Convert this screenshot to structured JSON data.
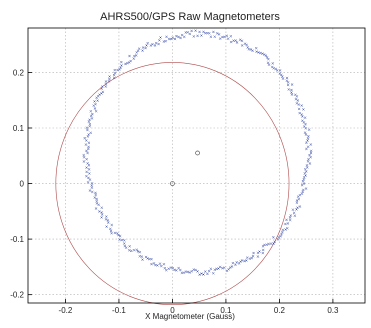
{
  "chart_data": {
    "type": "scatter",
    "title": "AHRS500/GPS Raw Magnetometers",
    "xlabel": "X Magnetometer (Gauss)",
    "ylabel": "",
    "xlim": [
      -0.27,
      0.36
    ],
    "ylim": [
      -0.215,
      0.28
    ],
    "xticks": [
      -0.2,
      -0.1,
      0,
      0.1,
      0.2,
      0.3
    ],
    "xtick_labels": [
      "-0.2",
      "-0.1",
      "0",
      "0.1",
      "0.2",
      "0.3"
    ],
    "yticks": [
      -0.2,
      -0.1,
      0,
      0.1,
      0.2
    ],
    "ytick_labels": [
      "-0.2",
      "-0.1",
      "0",
      "0.1",
      "0.2"
    ],
    "grid": true,
    "colors": {
      "data": "#2a3fa0",
      "reference_circle": "#b04a4a",
      "center": "#555555",
      "axis": "#000000",
      "grid": "#b0b0b0"
    },
    "series": [
      {
        "kind": "raw_measurements",
        "marker": "x",
        "center": [
          0.047,
          0.055
        ],
        "radius_x": 0.208,
        "radius_y": 0.215,
        "count": 360
      },
      {
        "kind": "reference_circle",
        "center": [
          0.0,
          0.0
        ],
        "radius": 0.218
      }
    ],
    "center_markers": [
      {
        "x": 0.0,
        "y": 0.0
      },
      {
        "x": 0.047,
        "y": 0.055
      }
    ]
  }
}
